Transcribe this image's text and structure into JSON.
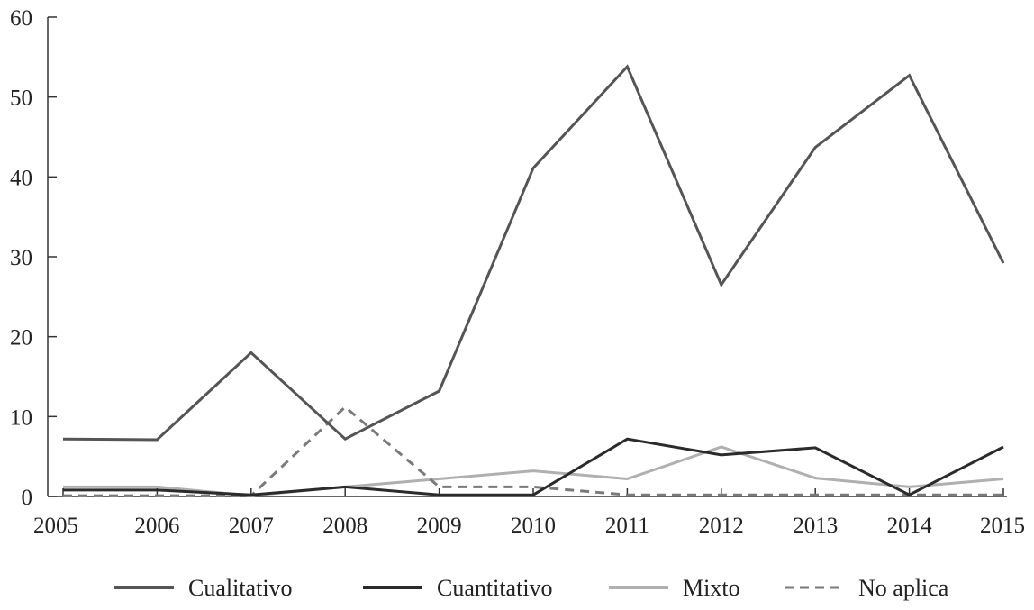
{
  "chart_data": {
    "type": "line",
    "categories": [
      "2005",
      "2006",
      "2007",
      "2008",
      "2009",
      "2010",
      "2011",
      "2012",
      "2013",
      "2014",
      "2015"
    ],
    "ylim": [
      0,
      60
    ],
    "yticks": [
      0,
      10,
      20,
      30,
      40,
      50,
      60
    ],
    "grid": false,
    "legend_position": "bottom",
    "series": [
      {
        "name": "Cualitativo",
        "values": [
          7.2,
          7.1,
          18.0,
          7.2,
          13.2,
          41.1,
          53.8,
          26.5,
          43.7,
          52.7,
          29.2
        ],
        "color": "#555555",
        "dash": "solid"
      },
      {
        "name": "Cuantitativo",
        "values": [
          0.8,
          0.8,
          0.2,
          1.2,
          0.2,
          0.2,
          7.2,
          5.2,
          6.1,
          0.2,
          6.2
        ],
        "color": "#2b2b2b",
        "dash": "solid"
      },
      {
        "name": "Mixto",
        "values": [
          1.2,
          1.2,
          0.1,
          1.2,
          2.2,
          3.2,
          2.2,
          6.2,
          2.3,
          1.2,
          2.2
        ],
        "color": "#b0b0b0",
        "dash": "solid"
      },
      {
        "name": "No aplica",
        "values": [
          0.1,
          0.1,
          0.1,
          11.2,
          1.2,
          1.2,
          0.2,
          0.2,
          0.2,
          0.2,
          0.2
        ],
        "color": "#7a7a7a",
        "dash": "dashed"
      }
    ]
  }
}
